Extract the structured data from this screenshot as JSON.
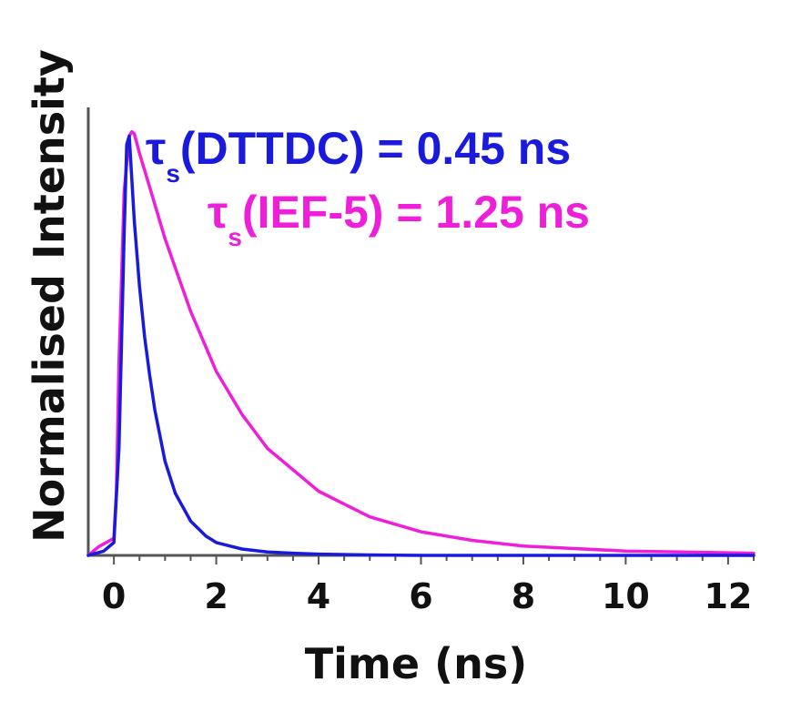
{
  "chart_data": {
    "type": "line",
    "xlabel": "Time (ns)",
    "ylabel": "Normalised Intensity",
    "xlim": [
      -0.5,
      12.5
    ],
    "ylim": [
      0,
      1
    ],
    "x_ticks": [
      0,
      2,
      4,
      6,
      8,
      10,
      12
    ],
    "x_tick_labels": [
      "0",
      "2",
      "4",
      "6",
      "8",
      "10",
      "12"
    ],
    "grid": false,
    "annotations": [
      {
        "symbol": "τ",
        "subscript": "s",
        "text": "(DTTDC) = 0.45 ns",
        "color": "#1a1adc"
      },
      {
        "symbol": "τ",
        "subscript": "s",
        "text": "(IEF-5) = 1.25 ns",
        "color": "#ee1fd8"
      }
    ],
    "series": [
      {
        "color": "#1a1adc",
        "x": [
          -0.5,
          -0.2,
          0.0,
          0.1,
          0.2,
          0.25,
          0.3,
          0.4,
          0.5,
          0.6,
          0.7,
          0.8,
          1.0,
          1.2,
          1.5,
          1.8,
          2.0,
          2.5,
          3.0,
          3.5,
          4.0,
          5.0,
          6.0,
          8.0,
          12.5
        ],
        "y": [
          0.0,
          0.01,
          0.03,
          0.25,
          0.75,
          0.96,
          0.98,
          0.78,
          0.63,
          0.51,
          0.42,
          0.34,
          0.22,
          0.145,
          0.08,
          0.045,
          0.03,
          0.015,
          0.008,
          0.005,
          0.003,
          0.001,
          0.0,
          0.0,
          0.0
        ]
      },
      {
        "color": "#ee1fd8",
        "x": [
          -0.5,
          -0.3,
          0.0,
          0.05,
          0.1,
          0.2,
          0.3,
          0.35,
          0.4,
          0.5,
          0.7,
          1.0,
          1.5,
          2.0,
          2.5,
          3.0,
          4.0,
          5.0,
          6.0,
          7.0,
          8.0,
          10.0,
          12.5
        ],
        "y": [
          0.0,
          0.02,
          0.04,
          0.15,
          0.45,
          0.85,
          0.98,
          0.99,
          0.985,
          0.94,
          0.86,
          0.74,
          0.57,
          0.43,
          0.33,
          0.25,
          0.15,
          0.09,
          0.055,
          0.035,
          0.022,
          0.01,
          0.005
        ]
      }
    ]
  }
}
